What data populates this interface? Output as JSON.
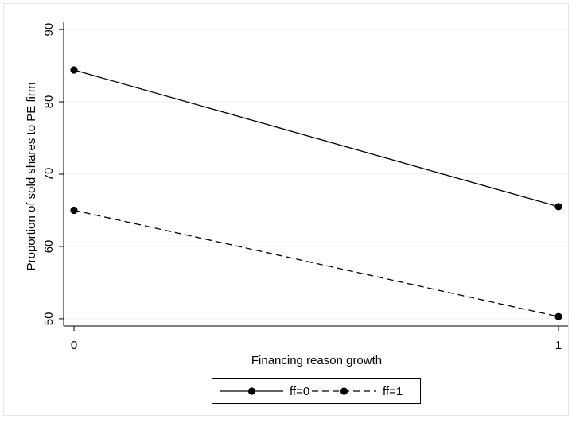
{
  "chart_data": {
    "type": "line",
    "title": "",
    "xlabel": "Financing reason growth",
    "ylabel": "Proportion of sold shares to PE firm",
    "x": [
      0,
      1
    ],
    "x_ticks": [
      0,
      1
    ],
    "x_tick_labels": [
      "0",
      "1"
    ],
    "ylim": [
      49,
      91
    ],
    "y_ticks": [
      50,
      60,
      70,
      80,
      90
    ],
    "y_tick_labels": [
      "50",
      "60",
      "70",
      "80",
      "90"
    ],
    "grid": "horizontal",
    "legend_position": "bottom",
    "series": [
      {
        "name": "ff=0",
        "values": [
          84.4,
          65.5
        ],
        "style": "solid",
        "color": "#000000"
      },
      {
        "name": "ff=1",
        "values": [
          65.0,
          50.3
        ],
        "style": "dashed",
        "color": "#000000"
      }
    ]
  },
  "colors": {
    "background": "#ffffff",
    "plot_border": "#e6e6e6",
    "gridline": "#eaf2f3",
    "ink": "#000000"
  }
}
